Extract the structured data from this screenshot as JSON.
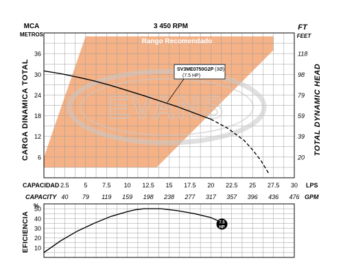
{
  "header": {
    "rpm": "3 450 RPM",
    "left_unit_top": "MCA",
    "left_unit_bottom": "METROS",
    "right_unit_top": "FT",
    "right_unit_bottom": "FEET"
  },
  "axes": {
    "left_title": "CARGA DINAMICA TOTAL",
    "right_title": "TOTAL DYNAMIC HEAD",
    "capacity_lps_label": "CAPACIDAD",
    "capacity_lps_unit": "LPS",
    "capacity_gpm_label": "CAPACITY",
    "capacity_gpm_unit": "GPM",
    "efficiency_title": "EFICIENCIA",
    "efficiency_unit": "%"
  },
  "colors": {
    "recommended_range": "#f5b287",
    "grid": "#9a9a9a",
    "curve": "#000000",
    "logo": "#c8c8c8"
  },
  "chart_data": [
    {
      "type": "line",
      "title": "",
      "region_label": "Rango Recomendado",
      "model_label": "SV3ME0750G2P",
      "model_phase": "(3Ø)",
      "model_hp": "(7.5 HP)",
      "xlabel": "CAPACIDAD",
      "ylabel": "CARGA DINAMICA TOTAL",
      "xlim": [
        0,
        30
      ],
      "ylim": [
        0,
        42
      ],
      "grid": true,
      "x_ticks": [
        2.5,
        5,
        7.5,
        10,
        12.5,
        15,
        17.5,
        20,
        22.5,
        25,
        27.5,
        30
      ],
      "x_tick_labels": [
        "2.5",
        "5",
        "7.5",
        "10",
        "12.5",
        "15",
        "17.5",
        "20",
        "22.5",
        "25",
        "27.5",
        "30"
      ],
      "gpm_ticks": [
        2.5,
        5,
        7.5,
        10,
        12.5,
        15,
        17.5,
        20,
        22.5,
        25,
        27.5,
        30
      ],
      "gpm_tick_labels": [
        "40",
        "79",
        "119",
        "159",
        "198",
        "238",
        "277",
        "317",
        "357",
        "396",
        "436",
        "476"
      ],
      "y_left_ticks": [
        6,
        12,
        18,
        24,
        30,
        36
      ],
      "y_left_tick_labels": [
        "6",
        "12",
        "18",
        "24",
        "30",
        "36"
      ],
      "y_right_ticks": [
        6,
        12,
        18,
        24,
        30,
        36
      ],
      "y_right_tick_labels": [
        "20",
        "39",
        "59",
        "79",
        "98",
        "118"
      ],
      "recommended_range_polygon": [
        [
          0,
          6
        ],
        [
          5,
          41
        ],
        [
          27.5,
          41
        ],
        [
          27.5,
          37
        ],
        [
          13.5,
          3
        ],
        [
          0,
          3
        ]
      ],
      "series": [
        {
          "style": "solid",
          "x": [
            0,
            2,
            4,
            6,
            8,
            10,
            12,
            14,
            16,
            18,
            20
          ],
          "y": [
            31,
            30.2,
            29.2,
            28.1,
            26.8,
            25.3,
            23.8,
            22.2,
            20.6,
            18.8,
            17
          ]
        },
        {
          "style": "dashed",
          "x": [
            20,
            22,
            24,
            25,
            26,
            27
          ],
          "y": [
            17,
            14.4,
            10.8,
            8.1,
            5,
            1
          ]
        }
      ]
    },
    {
      "type": "line",
      "title": "",
      "ylabel": "EFICIENCIA",
      "xlim": [
        0,
        30
      ],
      "ylim": [
        0,
        55
      ],
      "grid": true,
      "y_ticks": [
        10,
        20,
        30,
        40,
        50
      ],
      "y_tick_labels": [
        "10",
        "20",
        "30",
        "40",
        "50"
      ],
      "end_marker": [
        "7.5",
        "HP"
      ],
      "series": [
        {
          "x": [
            0,
            2,
            4,
            6,
            8,
            10,
            11,
            12,
            13,
            14,
            16,
            18,
            20,
            21
          ],
          "y": [
            5,
            17,
            27,
            35,
            42,
            47,
            49,
            50,
            50,
            50,
            48,
            45,
            41,
            37
          ]
        }
      ]
    }
  ]
}
